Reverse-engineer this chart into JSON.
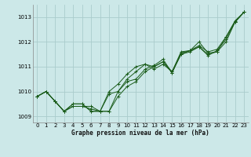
{
  "background_color": "#cce8e8",
  "grid_color": "#aacccc",
  "line_color": "#1a5c1a",
  "marker_color": "#1a5c1a",
  "xlabel": "Graphe pression niveau de la mer (hPa)",
  "xlim": [
    -0.5,
    23.5
  ],
  "ylim": [
    1008.75,
    1013.5
  ],
  "yticks": [
    1009,
    1010,
    1011,
    1012,
    1013
  ],
  "xticks": [
    0,
    1,
    2,
    3,
    4,
    5,
    6,
    7,
    8,
    9,
    10,
    11,
    12,
    13,
    14,
    15,
    16,
    17,
    18,
    19,
    20,
    21,
    22,
    23
  ],
  "series": [
    [
      1009.8,
      1010.0,
      1009.6,
      1009.2,
      1009.4,
      1009.4,
      1009.4,
      1009.2,
      1009.2,
      1010.0,
      1010.5,
      1010.8,
      1011.1,
      1010.9,
      1011.1,
      1010.8,
      1011.5,
      1011.6,
      1011.8,
      1011.5,
      1011.6,
      1012.2,
      1012.8,
      1013.2
    ],
    [
      1009.8,
      1010.0,
      1009.6,
      1009.2,
      1009.4,
      1009.4,
      1009.3,
      1009.2,
      1010.0,
      1010.3,
      1010.7,
      1011.0,
      1011.1,
      1011.0,
      1011.2,
      1010.8,
      1011.6,
      1011.65,
      1012.0,
      1011.55,
      1011.6,
      1012.0,
      1012.8,
      1013.2
    ],
    [
      1009.8,
      1010.0,
      1009.6,
      1009.2,
      1009.5,
      1009.5,
      1009.2,
      1009.2,
      1009.9,
      1010.0,
      1010.4,
      1010.5,
      1010.9,
      1011.05,
      1011.3,
      1010.75,
      1011.55,
      1011.65,
      1011.85,
      1011.6,
      1011.7,
      1012.2,
      1012.85,
      1013.2
    ],
    [
      1009.8,
      1010.0,
      1009.6,
      1009.2,
      1009.5,
      1009.5,
      1009.2,
      1009.2,
      1009.2,
      1009.8,
      1010.2,
      1010.4,
      1010.8,
      1011.0,
      1011.2,
      1010.75,
      1011.5,
      1011.65,
      1011.8,
      1011.45,
      1011.65,
      1012.1,
      1012.8,
      1013.2
    ]
  ]
}
